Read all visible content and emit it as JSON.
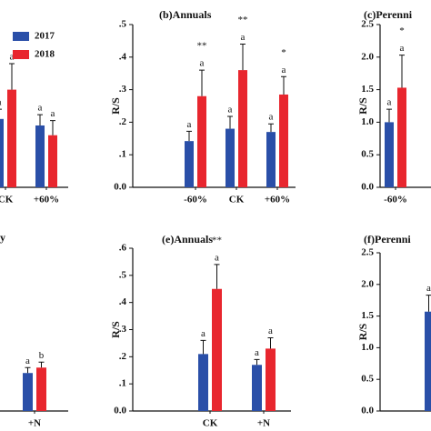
{
  "chart_data": [
    {
      "type": "bar",
      "categories": [
        "CK",
        "+60%"
      ],
      "ylim": [
        0,
        0.5
      ],
      "series": [
        {
          "name": "2017",
          "color": "#2a4fa8",
          "values": [
            0.21,
            0.19
          ],
          "errors": [
            0.03,
            0.033
          ],
          "labels": [
            "a",
            "a"
          ]
        },
        {
          "name": "2018",
          "color": "#e8262e",
          "values": [
            0.3,
            0.16
          ],
          "errors": [
            0.08,
            0.045
          ],
          "labels": [
            "a",
            "a"
          ]
        }
      ]
    },
    {
      "type": "bar",
      "title": "(b)Annuals",
      "ylabel": "R/S",
      "categories": [
        "-60%",
        "CK",
        "+60%"
      ],
      "ylim": [
        0,
        0.5
      ],
      "yticks": [
        {
          "value": 0,
          "label": "0.0"
        },
        {
          "value": 0.1,
          "label": ".1"
        },
        {
          "value": 0.2,
          "label": ".2"
        },
        {
          "value": 0.3,
          "label": ".3"
        },
        {
          "value": 0.4,
          "label": ".4"
        },
        {
          "value": 0.5,
          "label": ".5"
        }
      ],
      "series": [
        {
          "color": "#2a4fa8",
          "values": [
            0.142,
            0.18,
            0.17
          ],
          "errors": [
            0.03,
            0.038,
            0.025
          ],
          "labels": [
            "a",
            "a",
            "a"
          ]
        },
        {
          "color": "#e8262e",
          "values": [
            0.28,
            0.36,
            0.285
          ],
          "errors": [
            0.08,
            0.08,
            0.055
          ],
          "labels": [
            "a",
            "a",
            "a"
          ],
          "sig": [
            "**",
            "**",
            "*"
          ]
        }
      ]
    },
    {
      "type": "bar",
      "title": "(c)Perenni",
      "ylabel": "R/S",
      "categories": [
        "-60%"
      ],
      "ylim": [
        0,
        2.5
      ],
      "yticks": [
        {
          "value": 0,
          "label": "0.0"
        },
        0.5,
        {
          "value": 1,
          "label": "1.0"
        },
        1.5,
        {
          "value": 2,
          "label": "2.0"
        },
        2.5
      ],
      "series": [
        {
          "color": "#2a4fa8",
          "values": [
            1.0
          ],
          "errors": [
            0.2
          ],
          "labels": [
            "a"
          ]
        },
        {
          "color": "#e8262e",
          "values": [
            1.53
          ],
          "errors": [
            0.5
          ],
          "labels": [
            "a"
          ],
          "sig": [
            "*"
          ]
        }
      ]
    },
    {
      "type": "bar",
      "title": "y",
      "categories": [
        "+N"
      ],
      "ylim": [
        0,
        0.6
      ],
      "series": [
        {
          "color": "#2a4fa8",
          "values": [
            0.14
          ],
          "errors": [
            0.02
          ],
          "labels": [
            "a"
          ]
        },
        {
          "color": "#e8262e",
          "values": [
            0.16
          ],
          "errors": [
            0.02
          ],
          "labels": [
            "b"
          ]
        }
      ]
    },
    {
      "type": "bar",
      "title": "(e)Annuals",
      "ylabel": "R/S",
      "categories": [
        "CK",
        "+N"
      ],
      "ylim": [
        0,
        0.6
      ],
      "yticks": [
        {
          "value": 0,
          "label": "0.0"
        },
        {
          "value": 0.1,
          "label": ".1"
        },
        {
          "value": 0.2,
          "label": ".2"
        },
        {
          "value": 0.3,
          "label": ".3"
        },
        {
          "value": 0.4,
          "label": ".4"
        },
        {
          "value": 0.5,
          "label": ".5"
        },
        {
          "value": 0.6,
          "label": ".6"
        }
      ],
      "series": [
        {
          "color": "#2a4fa8",
          "values": [
            0.21,
            0.17
          ],
          "errors": [
            0.05,
            0.02
          ],
          "labels": [
            "a",
            "a"
          ]
        },
        {
          "color": "#e8262e",
          "values": [
            0.45,
            0.23
          ],
          "errors": [
            0.09,
            0.04
          ],
          "labels": [
            "a",
            "a"
          ],
          "sig": [
            "**",
            null
          ]
        }
      ]
    },
    {
      "type": "bar",
      "title": "(f)Perenni",
      "ylabel": "R/S",
      "categories": [
        null
      ],
      "ylim": [
        0,
        2.5
      ],
      "yticks": [
        {
          "value": 0,
          "label": "0.0"
        },
        0.5,
        {
          "value": 1,
          "label": "1.0"
        },
        1.5,
        {
          "value": 2,
          "label": "2.0"
        },
        2.5
      ],
      "series": [
        {
          "color": "#2a4fa8",
          "values": [
            1.57
          ],
          "errors": [
            0.26
          ],
          "labels": [
            "a"
          ]
        }
      ]
    }
  ]
}
